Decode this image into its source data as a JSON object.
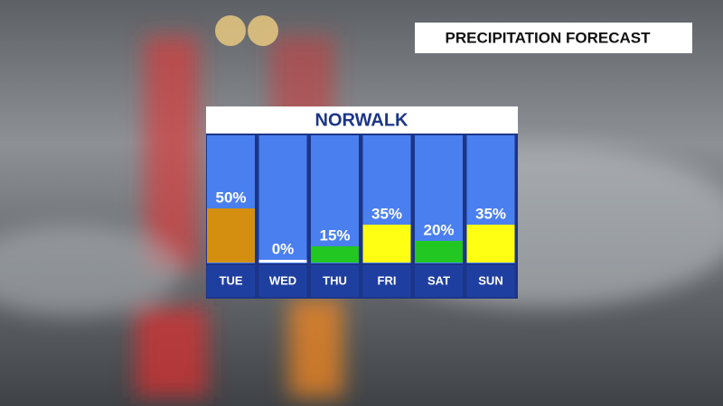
{
  "header": {
    "title": "PRECIPITATION FORECAST"
  },
  "chart_data": {
    "type": "bar",
    "title": "NORWALK",
    "categories": [
      "TUE",
      "WED",
      "THU",
      "FRI",
      "SAT",
      "SUN"
    ],
    "values": [
      50,
      0,
      15,
      35,
      20,
      35
    ],
    "value_labels": [
      "50%",
      "0%",
      "15%",
      "35%",
      "20%",
      "35%"
    ],
    "colors": [
      "#d48f10",
      "#ffffff",
      "#22c722",
      "#ffff14",
      "#22c722",
      "#ffff14"
    ],
    "ylim": [
      0,
      100
    ]
  }
}
